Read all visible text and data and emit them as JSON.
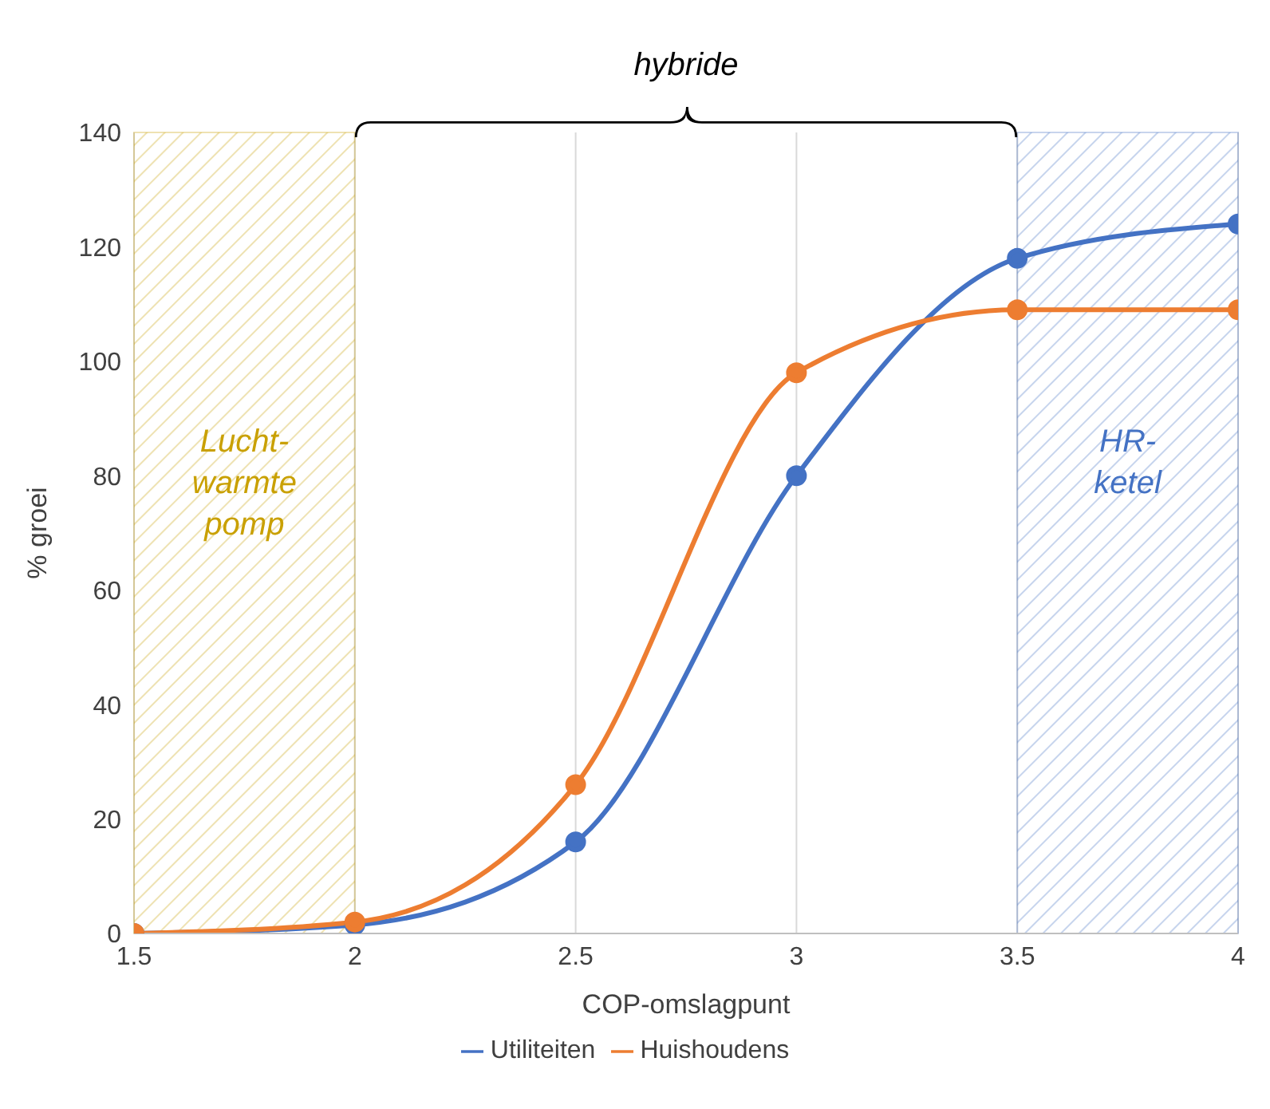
{
  "chart_data": {
    "type": "line",
    "xlabel": "COP-omslagpunt",
    "ylabel": "% groei",
    "x": [
      1.5,
      2,
      2.5,
      3,
      3.5,
      4
    ],
    "series": [
      {
        "name": "Utiliteiten",
        "color": "#4472c4",
        "values": [
          0,
          1.5,
          16,
          80,
          118,
          124
        ]
      },
      {
        "name": "Huishoudens",
        "color": "#ed7d31",
        "values": [
          0,
          2,
          26,
          98,
          109,
          109
        ]
      }
    ],
    "xlim": [
      1.5,
      4
    ],
    "xticks": [
      1.5,
      2,
      2.5,
      3,
      3.5,
      4
    ],
    "ylim": [
      0,
      140
    ],
    "yticks": [
      0,
      20,
      40,
      60,
      80,
      100,
      120,
      140
    ],
    "bands": [
      {
        "axis": "x",
        "from": 1.5,
        "to": 2,
        "label": "Lucht-\nwarmte\npomp",
        "color": "#c9a000"
      },
      {
        "axis": "x",
        "from": 3.5,
        "to": 4,
        "label": "HR-\nketel",
        "color": "#4472c4"
      }
    ],
    "annotations": [
      "hybride"
    ],
    "grid": "x",
    "legend": "bottom",
    "marker": "circle",
    "line_style": "solid"
  }
}
